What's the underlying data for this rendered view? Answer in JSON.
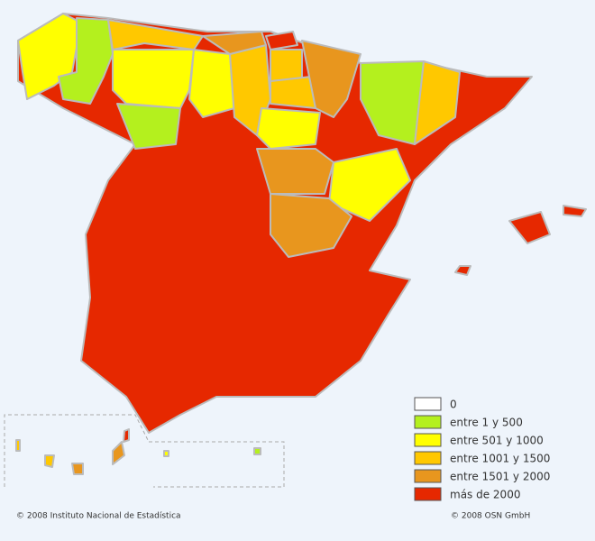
{
  "legend": {
    "items": [
      {
        "label": "0",
        "color": "#ffffff"
      },
      {
        "label": "entre 1 y 500",
        "color": "#b4f01e"
      },
      {
        "label": "entre 501 y 1000",
        "color": "#ffff00"
      },
      {
        "label": "entre 1001 y 1500",
        "color": "#ffc800"
      },
      {
        "label": "entre 1501 y 2000",
        "color": "#e8961e"
      },
      {
        "label": "más de 2000",
        "color": "#e62800"
      }
    ]
  },
  "footer": {
    "left": "© 2008 Instituto Nacional de Estadística",
    "right": "© 2008 OSN GmbH"
  }
}
